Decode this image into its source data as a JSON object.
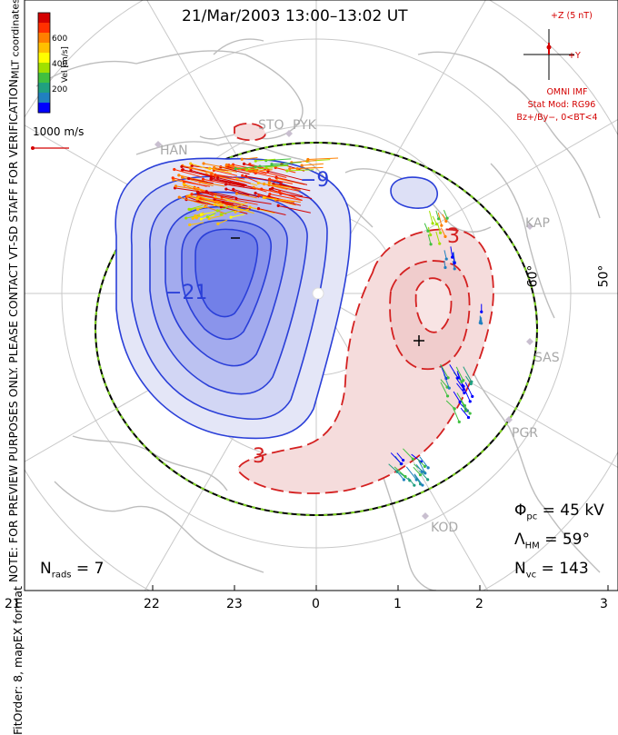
{
  "title": "21/Mar/2003 13:00–13:02 UT",
  "side_note": "NOTE: FOR PREVIEW PURPOSES ONLY. PLEASE CONTACT VT-SD STAFF FOR VERIFICATION.",
  "fit_order": "FitOrder: 8, mapEX format",
  "coordinates": "MLT coordinates",
  "velocity_scale": {
    "axis_label": "Vel [m/s]",
    "ticks": [
      "600",
      "400",
      "200"
    ],
    "reference_label": "1000 m/s",
    "colors": [
      "#d40000",
      "#ff3000",
      "#ff8000",
      "#ffc000",
      "#ffff00",
      "#a0e000",
      "#40c040",
      "#20a080",
      "#2080c0",
      "#0000ff"
    ]
  },
  "imf": {
    "scale_label": "+Z (5 nT)",
    "y_label": "+Y",
    "source": "OMNI IMF",
    "stat_model": "Stat Mod: RG96",
    "condition": "Bz+/By−, 0<BT<4"
  },
  "stats": {
    "phi_pc": {
      "label": "Φ",
      "sub": "pc",
      "value": "= 45 kV"
    },
    "lambda_hm": {
      "label": "Λ",
      "sub": "HM",
      "value": "= 59°"
    },
    "n_vc": {
      "label": "N",
      "sub": "vc",
      "value": "= 143"
    },
    "n_rads": {
      "label": "N",
      "sub": "rads",
      "value": "= 7"
    }
  },
  "mlt_hours": [
    "21",
    "22",
    "23",
    "0",
    "1",
    "2",
    "3"
  ],
  "latitude_labels": [
    "60°",
    "50°"
  ],
  "stations": [
    "STO",
    "PYK",
    "HAN",
    "KAP",
    "SAS",
    "PGR",
    "KOD"
  ],
  "contour_labels": {
    "neg1": "−9",
    "neg2": "−21",
    "pos1": "3",
    "pos2": "3"
  },
  "extrema": {
    "min": "−",
    "max": "+"
  },
  "colors": {
    "negative": "#2a3fd8",
    "positive": "#d42020",
    "grid": "#c8c8c8",
    "coast": "#bdbdbd",
    "hmb_dash": "#7ed321"
  }
}
